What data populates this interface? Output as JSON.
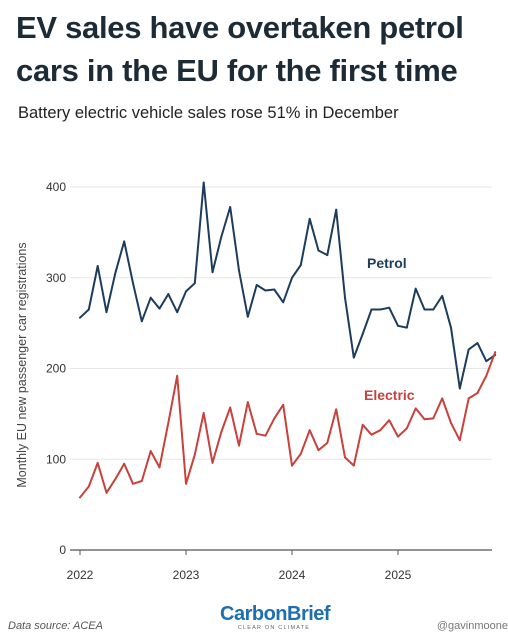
{
  "header": {
    "title": "EV sales have overtaken petrol cars in the EU for the first time",
    "subtitle": "Battery electric vehicle sales rose 51% in December"
  },
  "footer": {
    "source": "Data source: ACEA",
    "brand": "CarbonBrief",
    "brand_tagline": "CLEAR ON CLIMATE",
    "handle": "@gavinmoone"
  },
  "colors": {
    "petrol": "#1d3c5c",
    "electric": "#c8413c",
    "grid": "#e6e6e6",
    "axis": "#999999"
  },
  "chart_data": {
    "type": "line",
    "title": "EV sales have overtaken petrol cars in the EU for the first time",
    "ylabel": "Monthly EU new passenger car registrations",
    "xlabel": "",
    "ylim": [
      0,
      400
    ],
    "yticks": [
      0,
      100,
      200,
      300,
      400
    ],
    "xticks": [
      "2022",
      "2023",
      "2024",
      "2025"
    ],
    "xtick_years": [
      2022,
      2023,
      2024,
      2025
    ],
    "grid": true,
    "legend": "inline labels",
    "x": [
      "2022-01",
      "2022-02",
      "2022-03",
      "2022-04",
      "2022-05",
      "2022-06",
      "2022-07",
      "2022-08",
      "2022-09",
      "2022-10",
      "2022-11",
      "2022-12",
      "2023-01",
      "2023-02",
      "2023-03",
      "2023-04",
      "2023-05",
      "2023-06",
      "2023-07",
      "2023-08",
      "2023-09",
      "2023-10",
      "2023-11",
      "2023-12",
      "2024-01",
      "2024-02",
      "2024-03",
      "2024-04",
      "2024-05",
      "2024-06",
      "2024-07",
      "2024-08",
      "2024-09",
      "2024-10",
      "2024-11",
      "2024-12",
      "2025-01",
      "2025-02",
      "2025-03",
      "2025-04",
      "2025-05",
      "2025-06",
      "2025-07",
      "2025-08",
      "2025-09",
      "2025-10",
      "2025-11",
      "2025-12"
    ],
    "series": [
      {
        "name": "Petrol",
        "values": [
          256,
          265,
          313,
          262,
          305,
          340,
          294,
          252,
          278,
          266,
          282,
          262,
          285,
          294,
          405,
          306,
          345,
          378,
          308,
          257,
          292,
          286,
          287,
          273,
          300,
          314,
          365,
          330,
          325,
          375,
          278,
          212,
          238,
          265,
          265,
          267,
          247,
          245,
          288,
          265,
          265,
          280,
          245,
          178,
          221,
          228,
          208,
          215
        ]
      },
      {
        "name": "Electric",
        "values": [
          58,
          70,
          96,
          63,
          78,
          95,
          73,
          76,
          109,
          91,
          140,
          192,
          73,
          105,
          151,
          96,
          130,
          157,
          115,
          163,
          128,
          126,
          145,
          160,
          93,
          106,
          132,
          110,
          118,
          155,
          102,
          93,
          138,
          127,
          132,
          143,
          125,
          134,
          156,
          144,
          145,
          167,
          140,
          121,
          167,
          173,
          192,
          218
        ]
      }
    ]
  }
}
